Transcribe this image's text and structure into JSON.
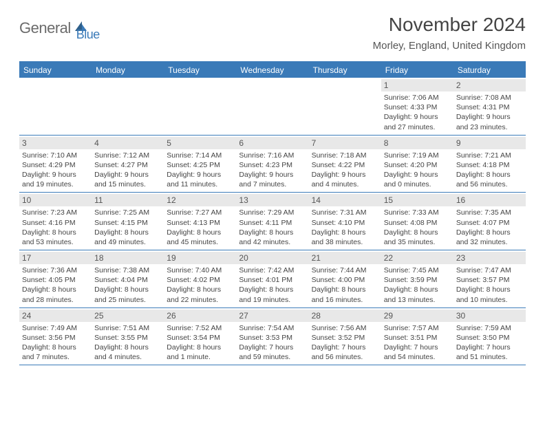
{
  "logo": {
    "text1": "General",
    "text2": "Blue"
  },
  "title": "November 2024",
  "location": "Morley, England, United Kingdom",
  "colors": {
    "header_bg": "#3a7ab8",
    "daynum_bg": "#e8e8e8",
    "text": "#444444",
    "logo_gray": "#6b6b6b",
    "logo_blue": "#3a7ab8"
  },
  "weekdays": [
    "Sunday",
    "Monday",
    "Tuesday",
    "Wednesday",
    "Thursday",
    "Friday",
    "Saturday"
  ],
  "weeks": [
    [
      {
        "n": "",
        "sr": "",
        "ss": "",
        "dl": ""
      },
      {
        "n": "",
        "sr": "",
        "ss": "",
        "dl": ""
      },
      {
        "n": "",
        "sr": "",
        "ss": "",
        "dl": ""
      },
      {
        "n": "",
        "sr": "",
        "ss": "",
        "dl": ""
      },
      {
        "n": "",
        "sr": "",
        "ss": "",
        "dl": ""
      },
      {
        "n": "1",
        "sr": "Sunrise: 7:06 AM",
        "ss": "Sunset: 4:33 PM",
        "dl": "Daylight: 9 hours and 27 minutes."
      },
      {
        "n": "2",
        "sr": "Sunrise: 7:08 AM",
        "ss": "Sunset: 4:31 PM",
        "dl": "Daylight: 9 hours and 23 minutes."
      }
    ],
    [
      {
        "n": "3",
        "sr": "Sunrise: 7:10 AM",
        "ss": "Sunset: 4:29 PM",
        "dl": "Daylight: 9 hours and 19 minutes."
      },
      {
        "n": "4",
        "sr": "Sunrise: 7:12 AM",
        "ss": "Sunset: 4:27 PM",
        "dl": "Daylight: 9 hours and 15 minutes."
      },
      {
        "n": "5",
        "sr": "Sunrise: 7:14 AM",
        "ss": "Sunset: 4:25 PM",
        "dl": "Daylight: 9 hours and 11 minutes."
      },
      {
        "n": "6",
        "sr": "Sunrise: 7:16 AM",
        "ss": "Sunset: 4:23 PM",
        "dl": "Daylight: 9 hours and 7 minutes."
      },
      {
        "n": "7",
        "sr": "Sunrise: 7:18 AM",
        "ss": "Sunset: 4:22 PM",
        "dl": "Daylight: 9 hours and 4 minutes."
      },
      {
        "n": "8",
        "sr": "Sunrise: 7:19 AM",
        "ss": "Sunset: 4:20 PM",
        "dl": "Daylight: 9 hours and 0 minutes."
      },
      {
        "n": "9",
        "sr": "Sunrise: 7:21 AM",
        "ss": "Sunset: 4:18 PM",
        "dl": "Daylight: 8 hours and 56 minutes."
      }
    ],
    [
      {
        "n": "10",
        "sr": "Sunrise: 7:23 AM",
        "ss": "Sunset: 4:16 PM",
        "dl": "Daylight: 8 hours and 53 minutes."
      },
      {
        "n": "11",
        "sr": "Sunrise: 7:25 AM",
        "ss": "Sunset: 4:15 PM",
        "dl": "Daylight: 8 hours and 49 minutes."
      },
      {
        "n": "12",
        "sr": "Sunrise: 7:27 AM",
        "ss": "Sunset: 4:13 PM",
        "dl": "Daylight: 8 hours and 45 minutes."
      },
      {
        "n": "13",
        "sr": "Sunrise: 7:29 AM",
        "ss": "Sunset: 4:11 PM",
        "dl": "Daylight: 8 hours and 42 minutes."
      },
      {
        "n": "14",
        "sr": "Sunrise: 7:31 AM",
        "ss": "Sunset: 4:10 PM",
        "dl": "Daylight: 8 hours and 38 minutes."
      },
      {
        "n": "15",
        "sr": "Sunrise: 7:33 AM",
        "ss": "Sunset: 4:08 PM",
        "dl": "Daylight: 8 hours and 35 minutes."
      },
      {
        "n": "16",
        "sr": "Sunrise: 7:35 AM",
        "ss": "Sunset: 4:07 PM",
        "dl": "Daylight: 8 hours and 32 minutes."
      }
    ],
    [
      {
        "n": "17",
        "sr": "Sunrise: 7:36 AM",
        "ss": "Sunset: 4:05 PM",
        "dl": "Daylight: 8 hours and 28 minutes."
      },
      {
        "n": "18",
        "sr": "Sunrise: 7:38 AM",
        "ss": "Sunset: 4:04 PM",
        "dl": "Daylight: 8 hours and 25 minutes."
      },
      {
        "n": "19",
        "sr": "Sunrise: 7:40 AM",
        "ss": "Sunset: 4:02 PM",
        "dl": "Daylight: 8 hours and 22 minutes."
      },
      {
        "n": "20",
        "sr": "Sunrise: 7:42 AM",
        "ss": "Sunset: 4:01 PM",
        "dl": "Daylight: 8 hours and 19 minutes."
      },
      {
        "n": "21",
        "sr": "Sunrise: 7:44 AM",
        "ss": "Sunset: 4:00 PM",
        "dl": "Daylight: 8 hours and 16 minutes."
      },
      {
        "n": "22",
        "sr": "Sunrise: 7:45 AM",
        "ss": "Sunset: 3:59 PM",
        "dl": "Daylight: 8 hours and 13 minutes."
      },
      {
        "n": "23",
        "sr": "Sunrise: 7:47 AM",
        "ss": "Sunset: 3:57 PM",
        "dl": "Daylight: 8 hours and 10 minutes."
      }
    ],
    [
      {
        "n": "24",
        "sr": "Sunrise: 7:49 AM",
        "ss": "Sunset: 3:56 PM",
        "dl": "Daylight: 8 hours and 7 minutes."
      },
      {
        "n": "25",
        "sr": "Sunrise: 7:51 AM",
        "ss": "Sunset: 3:55 PM",
        "dl": "Daylight: 8 hours and 4 minutes."
      },
      {
        "n": "26",
        "sr": "Sunrise: 7:52 AM",
        "ss": "Sunset: 3:54 PM",
        "dl": "Daylight: 8 hours and 1 minute."
      },
      {
        "n": "27",
        "sr": "Sunrise: 7:54 AM",
        "ss": "Sunset: 3:53 PM",
        "dl": "Daylight: 7 hours and 59 minutes."
      },
      {
        "n": "28",
        "sr": "Sunrise: 7:56 AM",
        "ss": "Sunset: 3:52 PM",
        "dl": "Daylight: 7 hours and 56 minutes."
      },
      {
        "n": "29",
        "sr": "Sunrise: 7:57 AM",
        "ss": "Sunset: 3:51 PM",
        "dl": "Daylight: 7 hours and 54 minutes."
      },
      {
        "n": "30",
        "sr": "Sunrise: 7:59 AM",
        "ss": "Sunset: 3:50 PM",
        "dl": "Daylight: 7 hours and 51 minutes."
      }
    ]
  ]
}
